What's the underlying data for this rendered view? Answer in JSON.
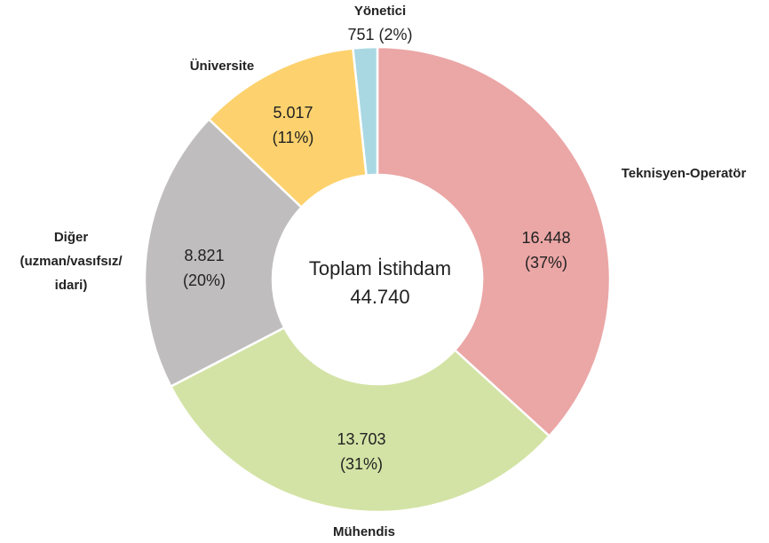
{
  "chart_data": {
    "type": "donut",
    "categories": [
      "Teknisyen-Operatör",
      "Mühendis",
      "Diğer\n(uzman/vasıfsız/\nidari)",
      "Üniversite",
      "Yönetici"
    ],
    "values": [
      16448,
      13703,
      8821,
      5017,
      751
    ],
    "value_labels": [
      "16.448",
      "13.703",
      "8.821",
      "5.017",
      "751"
    ],
    "percents": [
      37,
      31,
      20,
      11,
      2
    ],
    "percent_labels": [
      "(37%)",
      "(31%)",
      "(20%)",
      "(11%)",
      "(2%)"
    ],
    "colors": [
      "#eba6a6",
      "#d3e3a5",
      "#bfbdbd",
      "#fdd26e",
      "#a9d8e3"
    ],
    "center_title": "Toplam İstihdam",
    "total": 44740,
    "total_label": "44.740"
  }
}
